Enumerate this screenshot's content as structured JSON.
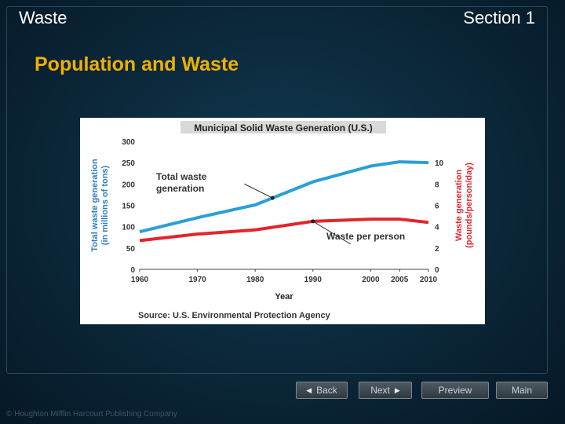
{
  "header": {
    "left": "Waste",
    "right": "Section 1"
  },
  "slide_title": "Population and Waste",
  "nav": {
    "back": "Back",
    "next": "Next",
    "preview": "Preview",
    "main": "Main"
  },
  "copyright": "© Houghton Mifflin Harcourt Publishing Company",
  "colors": {
    "total": "#2a9fd6",
    "per_person": "#e2252d",
    "title_accent": "#f0b000"
  },
  "chart_data": {
    "type": "line",
    "title": "Municipal Solid Waste Generation (U.S.)",
    "xlabel": "Year",
    "ylabel": "Total waste generation (in millions of tons)",
    "ylabel_lines": [
      "Total waste generation",
      "(in millions of tons)"
    ],
    "y2label": "Waste generation (pounds/person/day)",
    "y2label_lines": [
      "Waste generation",
      "(pounds/person/day)"
    ],
    "source": "Source: U.S. Environmental Protection Agency",
    "x": [
      1960,
      1970,
      1980,
      1990,
      2000,
      2005,
      2010
    ],
    "xlim": [
      1960,
      2010
    ],
    "ylim": [
      0,
      300
    ],
    "y2lim": [
      0,
      12
    ],
    "yticks": [
      0,
      50,
      100,
      150,
      200,
      250,
      300
    ],
    "y2ticks": [
      0,
      2,
      4,
      6,
      8,
      10
    ],
    "series": [
      {
        "key": "total",
        "axis": "left",
        "values": [
          88,
          121,
          151,
          205,
          242,
          252,
          250
        ]
      },
      {
        "key": "per_person",
        "axis": "right",
        "values": [
          2.7,
          3.3,
          3.7,
          4.5,
          4.7,
          4.7,
          4.4
        ]
      }
    ],
    "annotations": [
      {
        "series": "total",
        "lines": [
          "Total waste",
          "generation"
        ],
        "year": 1983
      },
      {
        "series": "per_person",
        "lines": [
          "Waste per person"
        ],
        "year": 1990
      }
    ]
  }
}
